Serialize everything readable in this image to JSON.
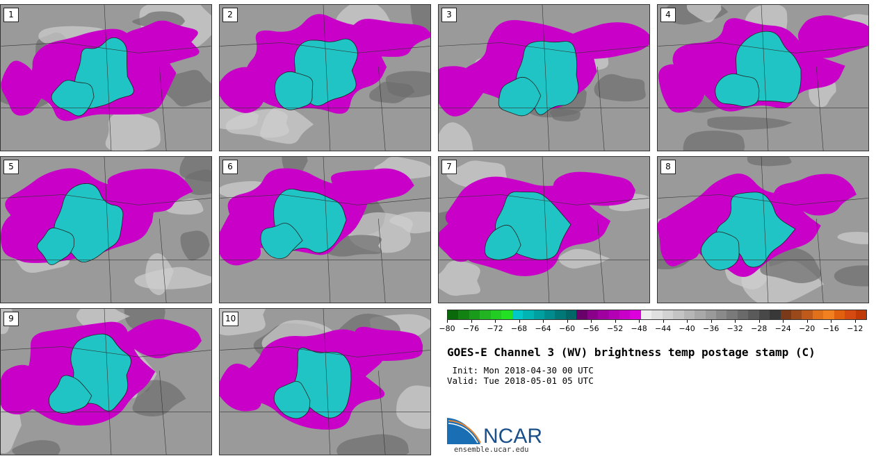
{
  "stamps": [
    "1",
    "2",
    "3",
    "4",
    "5",
    "6",
    "7",
    "8",
    "9",
    "10"
  ],
  "colorbar": {
    "title": "GOES-E Channel 3 (WV) brightness temp postage stamp (C)",
    "tick_labels": [
      "−80",
      "−76",
      "−72",
      "−68",
      "−64",
      "−60",
      "−56",
      "−52",
      "−48",
      "−44",
      "−40",
      "−36",
      "−32",
      "−28",
      "−24",
      "−20",
      "−16",
      "−12"
    ],
    "tick_values": [
      -80,
      -76,
      -72,
      -68,
      -64,
      -60,
      -56,
      -52,
      -48,
      -44,
      -40,
      -36,
      -32,
      -28,
      -24,
      -20,
      -16,
      -12
    ],
    "range": [
      -80,
      -10
    ],
    "colors": [
      "#0a6a0a",
      "#128212",
      "#1a9a1a",
      "#22b422",
      "#22cc22",
      "#22e022",
      "#00c8c8",
      "#00b4b4",
      "#00a0a0",
      "#008c8c",
      "#007878",
      "#006666",
      "#6a006a",
      "#8a008a",
      "#a000a0",
      "#b400b4",
      "#c800c8",
      "#dc00dc",
      "#eeeeee",
      "#e0e0e0",
      "#d2d2d2",
      "#c4c4c4",
      "#b6b6b6",
      "#a8a8a8",
      "#9a9a9a",
      "#8a8a8a",
      "#7a7a7a",
      "#6a6a6a",
      "#5a5a5a",
      "#484848",
      "#383838",
      "#7a3a1a",
      "#9a4a1a",
      "#c05a1a",
      "#e0701a",
      "#f28020",
      "#e06010",
      "#d44a10",
      "#c03a08"
    ]
  },
  "init_text": " Init: Mon 2018-04-30 00 UTC",
  "valid_text": "Valid: Tue 2018-05-01 05 UTC",
  "logo": {
    "name": "NCAR",
    "colors": {
      "blue": "#1a6fb4",
      "swoosh": "#e0863a",
      "text": "#1a4f8a"
    }
  },
  "site": "ensemble.ucar.edu",
  "map_colors": {
    "bg": "#9a9a9a",
    "light": "#cfcfcf",
    "dark": "#6e6e6e",
    "magenta": "#c800c8",
    "teal": "#20c4c4",
    "outline": "#222222"
  }
}
